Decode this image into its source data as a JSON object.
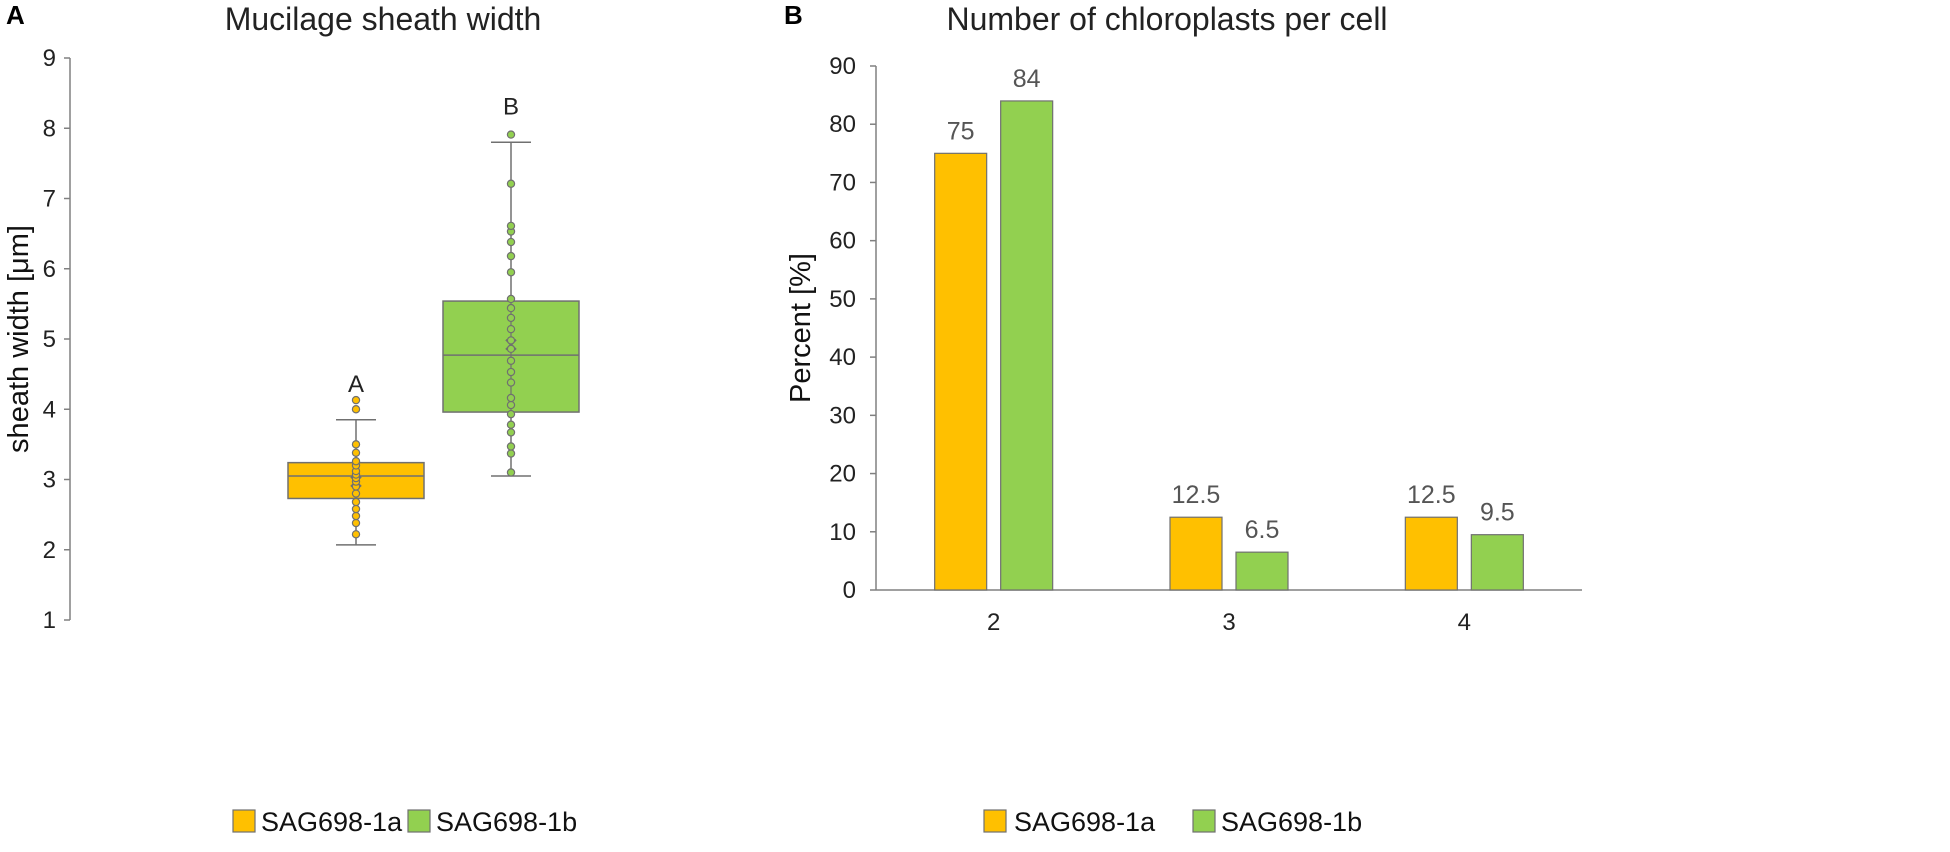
{
  "colors": {
    "series_a": "#FFC000",
    "series_b": "#92D050",
    "outline": "#707070",
    "axis": "#808080"
  },
  "chart_data": [
    {
      "type": "box",
      "panel": "A",
      "title": "Mucilage sheath width",
      "ylabel": "sheath width [μm]",
      "ylim": [
        1,
        9
      ],
      "yticks": [
        "1",
        "2",
        "3",
        "4",
        "5",
        "6",
        "7",
        "8",
        "9"
      ],
      "legend": [
        "SAG698-1a",
        "SAG698-1b"
      ],
      "boxes": [
        {
          "name": "SAG698-1a",
          "whisker_low": 2.07,
          "q1": 2.73,
          "median": 3.05,
          "q3": 3.24,
          "whisker_high": 3.85,
          "mean": 2.97,
          "significance": "A",
          "points": [
            2.22,
            2.38,
            2.48,
            2.58,
            2.68,
            2.8,
            2.9,
            2.97,
            3.02,
            3.07,
            3.12,
            3.2,
            3.26,
            3.38,
            3.5,
            4.0,
            4.13
          ]
        },
        {
          "name": "SAG698-1b",
          "whisker_low": 3.05,
          "q1": 3.96,
          "median": 4.77,
          "q3": 5.54,
          "whisker_high": 7.8,
          "mean": 4.92,
          "significance": "B",
          "points": [
            3.1,
            3.37,
            3.47,
            3.67,
            3.78,
            3.93,
            4.06,
            4.16,
            4.38,
            4.53,
            4.69,
            4.86,
            4.98,
            5.14,
            5.3,
            5.44,
            5.57,
            5.95,
            6.18,
            6.38,
            6.53,
            6.61,
            7.21,
            7.91
          ]
        }
      ]
    },
    {
      "type": "bar",
      "panel": "B",
      "title": "Number of chloroplasts per cell",
      "ylabel": "Percent [%]",
      "ylim": [
        0,
        90
      ],
      "yticks": [
        "0",
        "10",
        "20",
        "30",
        "40",
        "50",
        "60",
        "70",
        "80",
        "90"
      ],
      "categories": [
        "2",
        "3",
        "4"
      ],
      "legend": [
        "SAG698-1a",
        "SAG698-1b"
      ],
      "series": [
        {
          "name": "SAG698-1a",
          "values": [
            75,
            12.5,
            12.5
          ],
          "labels": [
            "75",
            "12.5",
            "12.5"
          ]
        },
        {
          "name": "SAG698-1b",
          "values": [
            84,
            6.5,
            9.5
          ],
          "labels": [
            "84",
            "6.5",
            "9.5"
          ]
        }
      ]
    }
  ]
}
